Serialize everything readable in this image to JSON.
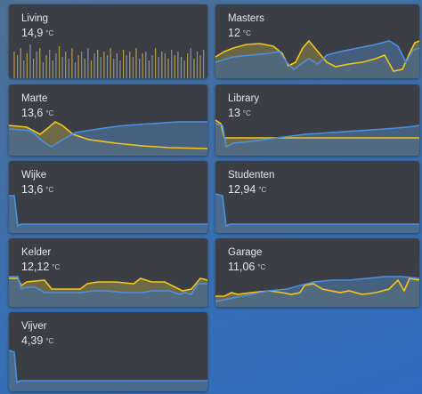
{
  "colors": {
    "card_bg": "#3b3f45",
    "text": "#e3e5e8",
    "series_blue": "#4a90e2",
    "series_yellow": "#f5c518",
    "fill_blue": "#4a6a8e",
    "fill_yellow": "#6f6a45"
  },
  "sensors": [
    {
      "name": "Living",
      "value": "14,9",
      "unit": "°C"
    },
    {
      "name": "Masters",
      "value": "12",
      "unit": "°C"
    },
    {
      "name": "Marte",
      "value": "13,6",
      "unit": "°C"
    },
    {
      "name": "Library",
      "value": "13",
      "unit": "°C"
    },
    {
      "name": "Wijke",
      "value": "13,6",
      "unit": "°C"
    },
    {
      "name": "Studenten",
      "value": "12,94",
      "unit": "°C"
    },
    {
      "name": "Kelder",
      "value": "12,12",
      "unit": "°C"
    },
    {
      "name": "Garage",
      "value": "11,06",
      "unit": "°C"
    },
    {
      "name": "Vijver",
      "value": "4,39",
      "unit": "°C"
    }
  ]
}
